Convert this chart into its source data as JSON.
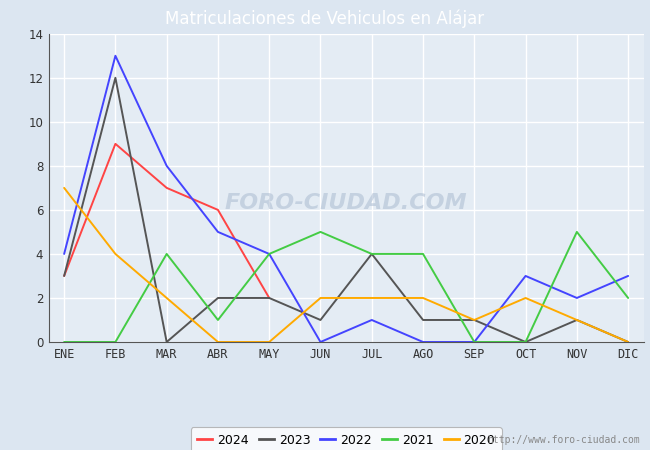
{
  "title": "Matriculaciones de Vehiculos en Alájar",
  "months": [
    "ENE",
    "FEB",
    "MAR",
    "ABR",
    "MAY",
    "JUN",
    "JUL",
    "AGO",
    "SEP",
    "OCT",
    "NOV",
    "DIC"
  ],
  "series": {
    "2024": {
      "values": [
        3,
        9,
        7,
        6,
        2,
        null,
        null,
        null,
        null,
        null,
        null,
        null
      ],
      "color": "#ff4444"
    },
    "2023": {
      "values": [
        3,
        12,
        0,
        2,
        2,
        1,
        4,
        1,
        1,
        0,
        1,
        0
      ],
      "color": "#555555"
    },
    "2022": {
      "values": [
        4,
        13,
        8,
        5,
        4,
        0,
        1,
        0,
        0,
        3,
        2,
        3
      ],
      "color": "#4444ff"
    },
    "2021": {
      "values": [
        0,
        0,
        4,
        1,
        4,
        5,
        4,
        4,
        0,
        0,
        5,
        2
      ],
      "color": "#44cc44"
    },
    "2020": {
      "values": [
        7,
        4,
        2,
        0,
        0,
        2,
        2,
        2,
        1,
        2,
        1,
        0
      ],
      "color": "#ffaa00"
    }
  },
  "series_order": [
    "2024",
    "2023",
    "2022",
    "2021",
    "2020"
  ],
  "ylim": [
    0,
    14
  ],
  "yticks": [
    0,
    2,
    4,
    6,
    8,
    10,
    12,
    14
  ],
  "header_color": "#4472c4",
  "outer_bg": "#dce6f1",
  "plot_bg": "#e4ecf4",
  "grid_color": "#ffffff",
  "title_color": "#ffffff",
  "title_fontsize": 12,
  "tick_fontsize": 8.5,
  "legend_fontsize": 9,
  "watermark_text": "FORO-CIUDAD.COM",
  "watermark_url": "http://www.foro-ciudad.com"
}
